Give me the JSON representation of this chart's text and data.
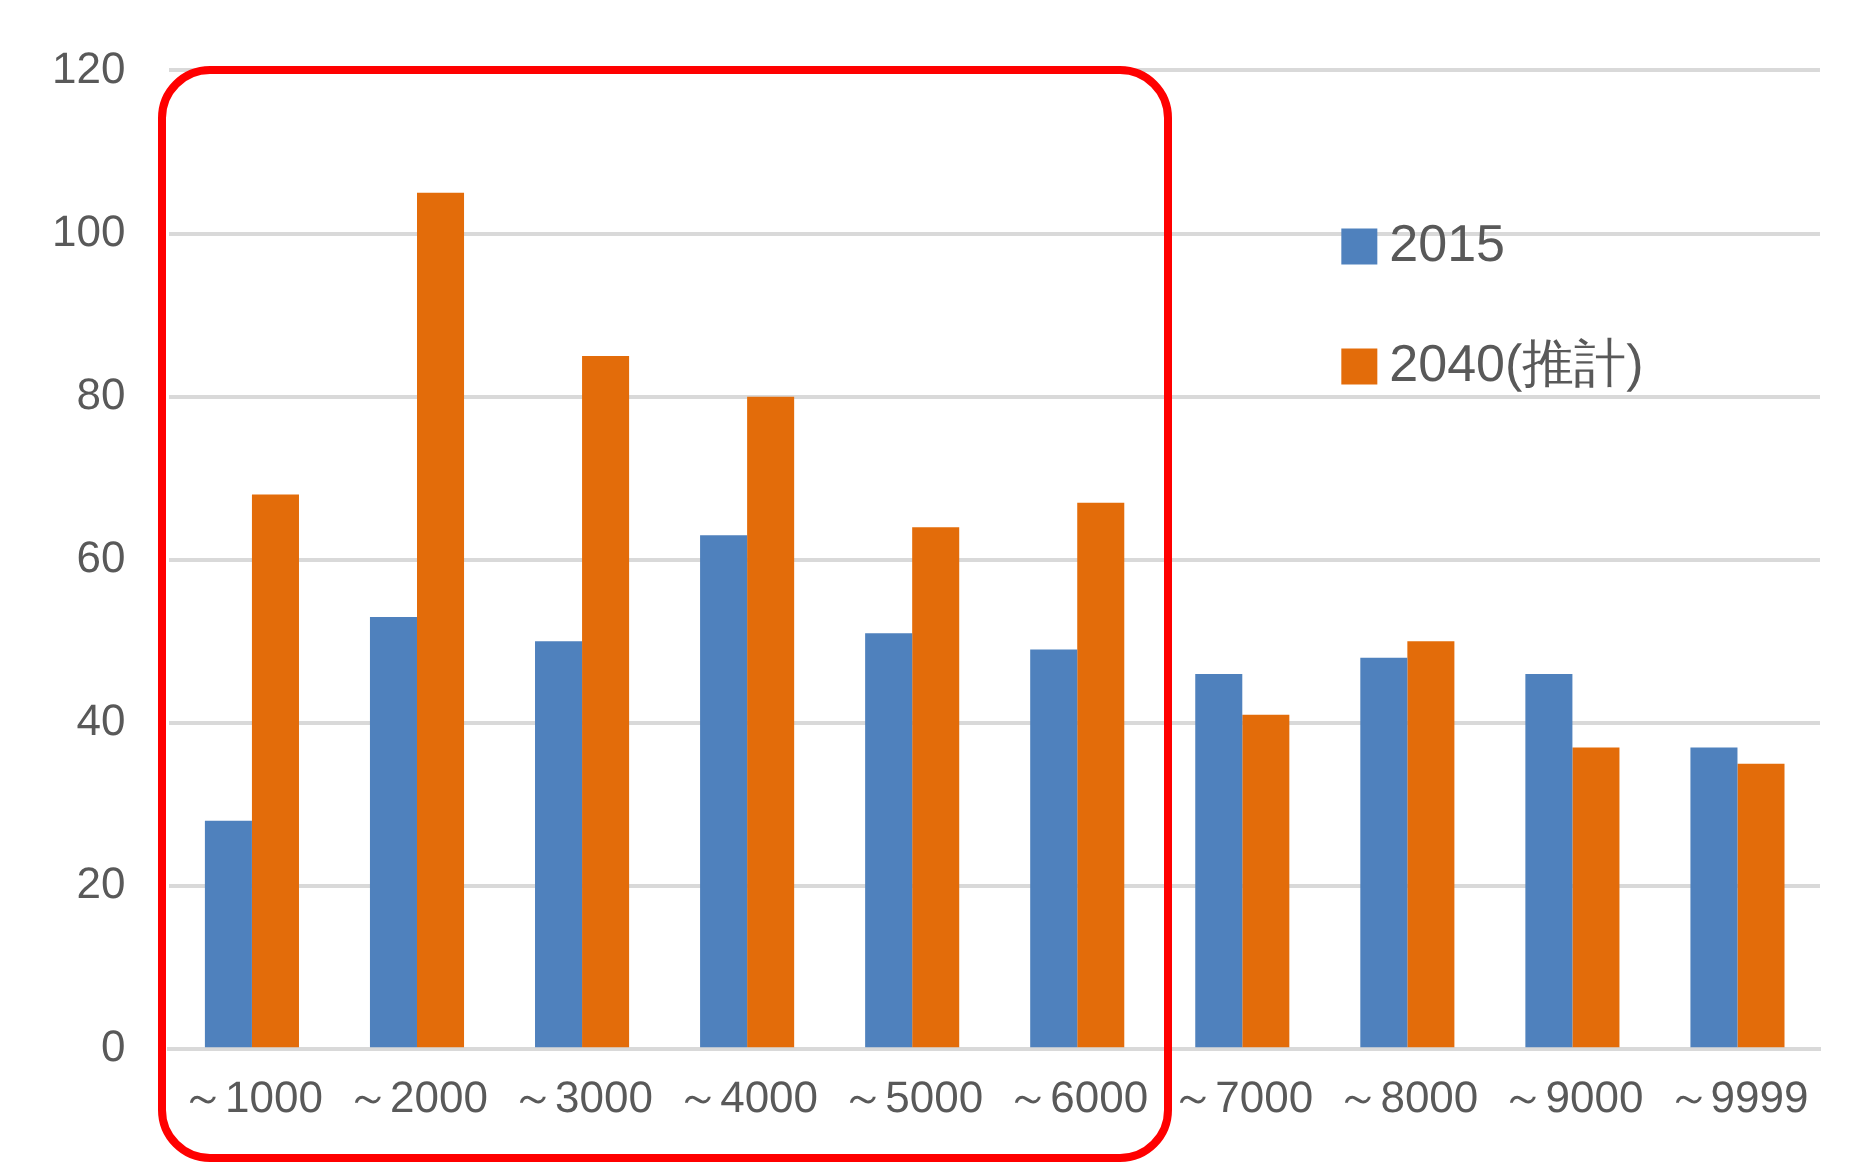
{
  "chart_data": {
    "type": "bar",
    "categories": [
      "～1000",
      "～2000",
      "～3000",
      "～4000",
      "～5000",
      "～6000",
      "～7000",
      "～8000",
      "～9000",
      "～9999"
    ],
    "series": [
      {
        "name": "2015",
        "color": "#4f81bd",
        "values": [
          28,
          53,
          50,
          63,
          51,
          49,
          46,
          48,
          46,
          37
        ]
      },
      {
        "name": "2040(推計)",
        "color": "#e36c0a",
        "values": [
          68,
          105,
          85,
          80,
          64,
          67,
          41,
          50,
          37,
          35
        ]
      }
    ],
    "ylim": [
      0,
      120
    ],
    "yticks": [
      0,
      20,
      40,
      60,
      80,
      100,
      120
    ],
    "grid": "y",
    "legend": "top right"
  }
}
